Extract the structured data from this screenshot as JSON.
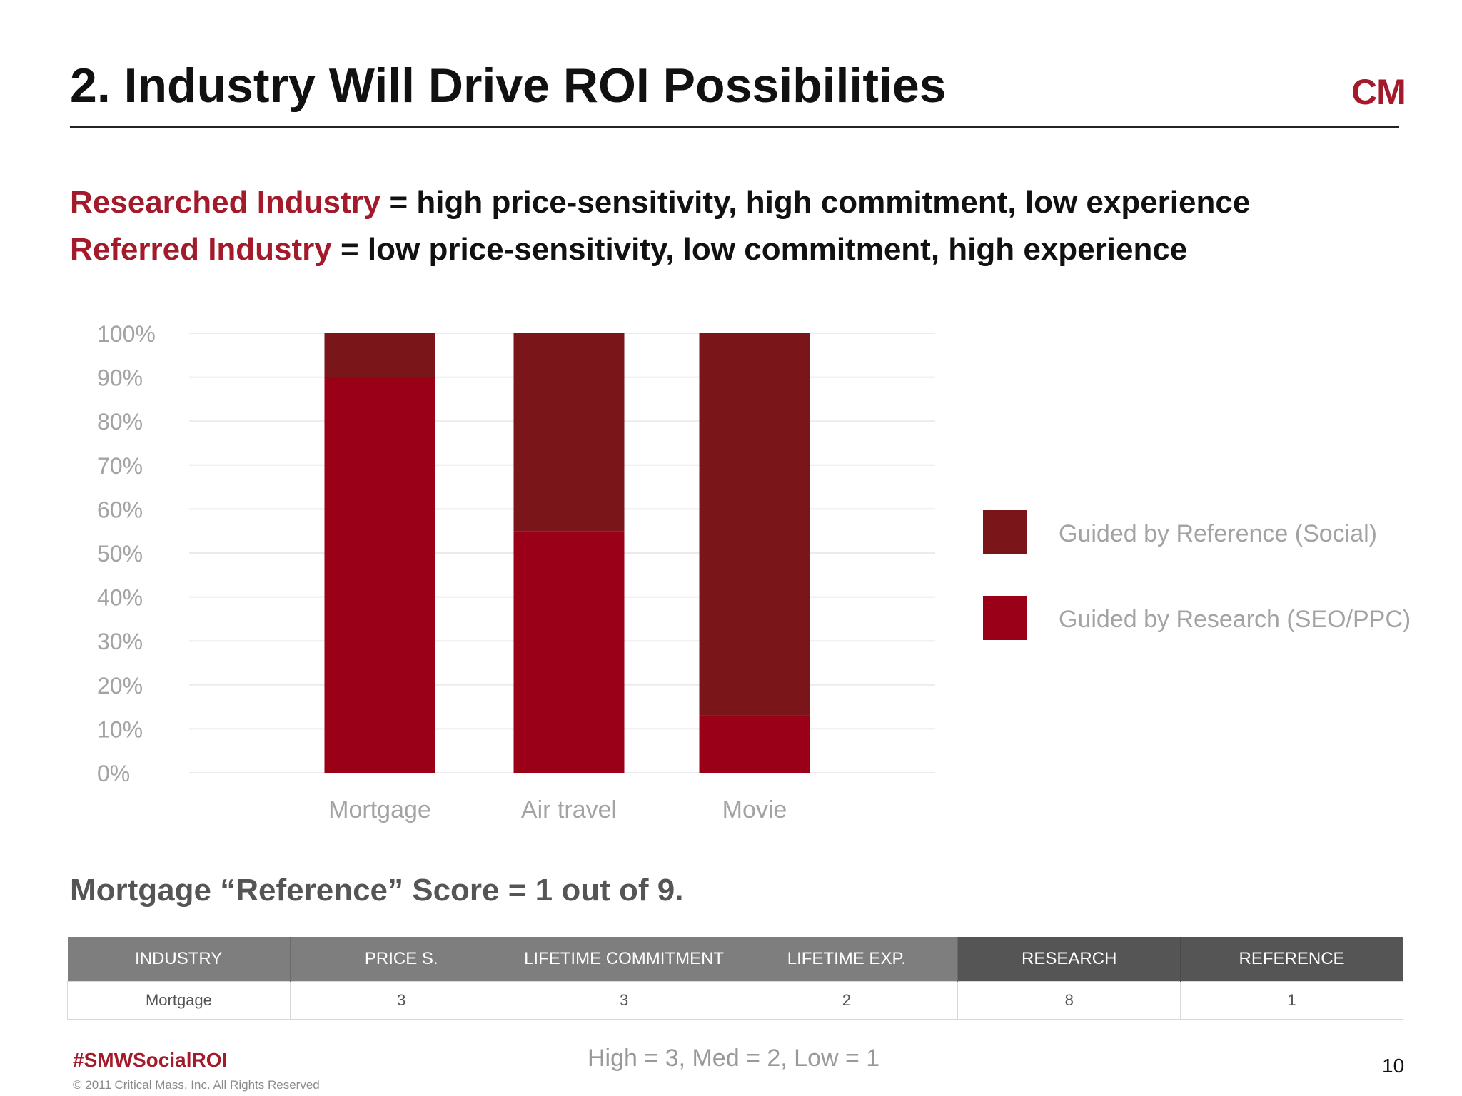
{
  "slide": {
    "title": "2. Industry Will Drive ROI Possibilities",
    "logo_text": "CM",
    "definitions": [
      {
        "term": "Researched Industry",
        "text": " = high price-sensitivity, high commitment, low experience"
      },
      {
        "term": "Referred Industry",
        "text": " = low price-sensitivity, low commitment, high experience"
      }
    ],
    "score_line": "Mortgage “Reference” Score = 1 out of 9.",
    "table": {
      "headers": [
        "INDUSTRY",
        "PRICE S.",
        "LIFETIME COMMITMENT",
        "LIFETIME EXP.",
        "RESEARCH",
        "REFERENCE"
      ],
      "rows": [
        [
          "Mortgage",
          "3",
          "3",
          "2",
          "8",
          "1"
        ]
      ]
    },
    "scale_note": "High = 3, Med = 2, Low = 1",
    "hashtag": "#SMWSocialROI",
    "copyright": "© 2011 Critical Mass, Inc. All Rights Reserved",
    "page_number": "10"
  },
  "chart_data": {
    "type": "bar",
    "stacked": true,
    "percent": true,
    "categories": [
      "Mortgage",
      "Air travel",
      "Movie"
    ],
    "series": [
      {
        "name": "Guided by Research (SEO/PPC)",
        "values": [
          90,
          55,
          13
        ],
        "color": "#9b0019"
      },
      {
        "name": "Guided by Reference (Social)",
        "values": [
          10,
          45,
          87
        ],
        "color": "#7a1519"
      }
    ],
    "ylim": [
      0,
      100
    ],
    "yticks": [
      "0%",
      "10%",
      "20%",
      "30%",
      "40%",
      "50%",
      "60%",
      "70%",
      "80%",
      "90%",
      "100%"
    ],
    "grid": true,
    "legend_position": "right",
    "legend_order": [
      1,
      0
    ]
  }
}
